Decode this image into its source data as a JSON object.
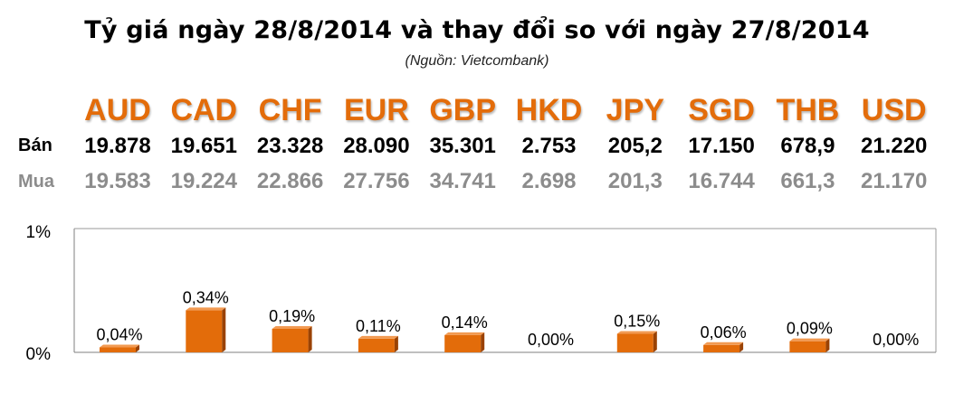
{
  "title": "Tỷ giá ngày 28/8/2014 và thay đổi so với ngày 27/8/2014",
  "subtitle": "(Nguồn: Vietcombank)",
  "row_labels": {
    "sell": "Bán",
    "buy": "Mua"
  },
  "colors": {
    "code": "#e36c0a",
    "bar": "#e36c0a",
    "bar_dark": "#9a4204",
    "buy_text": "#8c8c8c"
  },
  "chart_data": {
    "type": "bar",
    "categories": [
      "AUD",
      "CAD",
      "CHF",
      "EUR",
      "GBP",
      "HKD",
      "JPY",
      "SGD",
      "THB",
      "USD"
    ],
    "sell": [
      "19.878",
      "19.651",
      "23.328",
      "28.090",
      "35.301",
      "2.753",
      "205,2",
      "17.150",
      "678,9",
      "21.220"
    ],
    "buy": [
      "19.583",
      "19.224",
      "22.866",
      "27.756",
      "34.741",
      "2.698",
      "201,3",
      "16.744",
      "661,3",
      "21.170"
    ],
    "values": [
      0.04,
      0.34,
      0.19,
      0.11,
      0.14,
      0.0,
      0.15,
      0.06,
      0.09,
      0.0
    ],
    "value_labels": [
      "0,04%",
      "0,34%",
      "0,19%",
      "0,11%",
      "0,14%",
      "0,00%",
      "0,15%",
      "0,06%",
      "0,09%",
      "0,00%"
    ],
    "ylim": [
      0,
      1
    ],
    "yticks": [
      "0%",
      "1%"
    ],
    "grid": false,
    "legend": "none"
  }
}
